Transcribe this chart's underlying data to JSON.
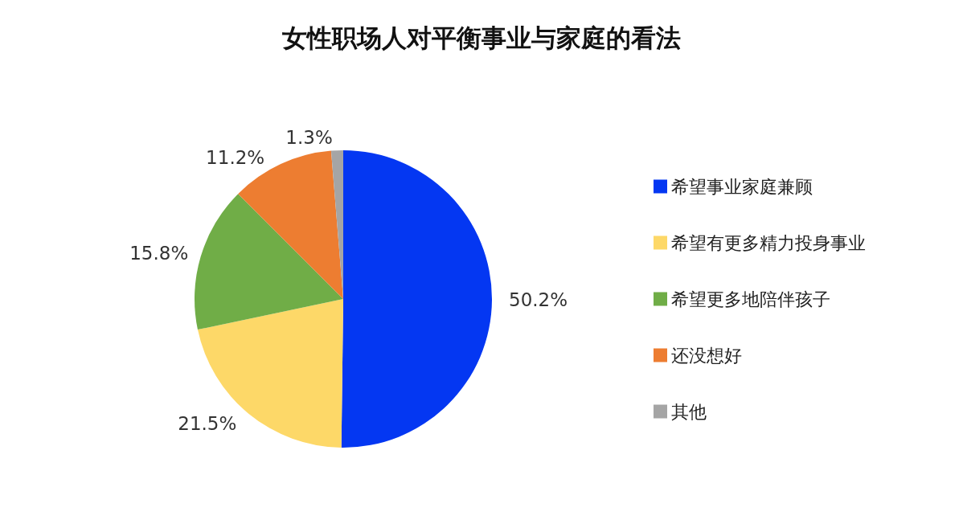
{
  "chart_data": {
    "type": "pie",
    "title": "女性职场人对平衡事业与家庭的看法",
    "categories": [
      "希望事业家庭兼顾",
      "希望有更多精力投身事业",
      "希望更多地陪伴孩子",
      "还没想好",
      "其他"
    ],
    "values": [
      50.2,
      21.5,
      15.8,
      11.2,
      1.3
    ],
    "colors": [
      "#0437f2",
      "#fdd868",
      "#70ad47",
      "#ed7d31",
      "#a5a5a5"
    ],
    "value_labels": [
      "50.2%",
      "21.5%",
      "15.8%",
      "11.2%",
      "1.3%"
    ],
    "legend": "right"
  }
}
